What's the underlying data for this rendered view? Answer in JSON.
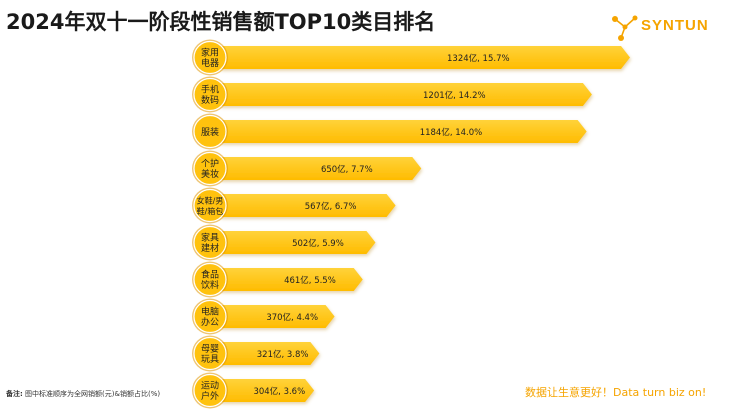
{
  "header": {
    "title": "2024年双十一阶段性销售额TOP10类目排名"
  },
  "brand": {
    "name": "SYNTUN",
    "color": "#f5a400"
  },
  "footer": {
    "note_label": "备注:",
    "note_text": "图中标准顺序为全网销额(元)&销额占比(%)",
    "slogan": "数据让生意更好！Data turn biz on!"
  },
  "colors": {
    "bar": "#ffc20e",
    "bar_dark": "#f4ad00",
    "badge": "#ffc20e",
    "badge_ring": "#e09600"
  },
  "chart_data": {
    "type": "bar",
    "orientation": "horizontal",
    "categories": [
      [
        "家用",
        "电器"
      ],
      [
        "手机",
        "数码"
      ],
      [
        "服装"
      ],
      [
        "个护",
        "美妆"
      ],
      [
        "女鞋/男",
        "鞋/箱包"
      ],
      [
        "家具",
        "建材"
      ],
      [
        "食品",
        "饮料"
      ],
      [
        "电脑",
        "办公"
      ],
      [
        "母婴",
        "玩具"
      ],
      [
        "运动",
        "户外"
      ]
    ],
    "values": [
      1324,
      1201,
      1184,
      650,
      567,
      502,
      461,
      370,
      321,
      304
    ],
    "shares": [
      15.7,
      14.2,
      14.0,
      7.7,
      6.7,
      5.9,
      5.5,
      4.4,
      3.8,
      3.6
    ],
    "value_labels": [
      "1324亿, 15.7%",
      "1201亿, 14.2%",
      "1184亿, 14.0%",
      "650亿, 7.7%",
      "567亿, 6.7%",
      "502亿, 5.9%",
      "461亿, 5.5%",
      "370亿, 4.4%",
      "321亿, 3.8%",
      "304亿, 3.6%"
    ],
    "unit": "亿"
  }
}
